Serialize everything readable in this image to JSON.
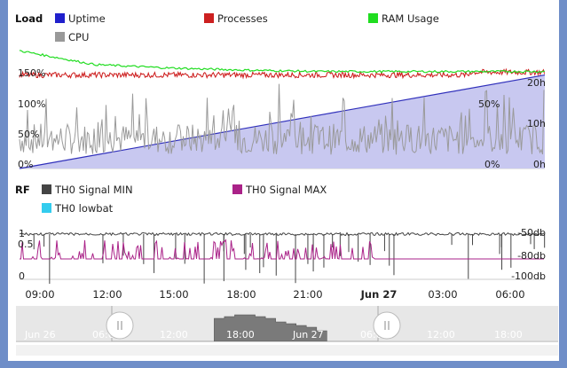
{
  "load_panel": {
    "title": "Load",
    "legend": [
      {
        "label": "Uptime",
        "color": "#2020cc"
      },
      {
        "label": "Processes",
        "color": "#cc2020"
      },
      {
        "label": "RAM Usage",
        "color": "#20dd20"
      },
      {
        "label": "CPU",
        "color": "#999999"
      }
    ],
    "left_ticks": [
      "150%",
      "100%",
      "50%",
      "0%"
    ],
    "inner_ticks": [
      "50%",
      "0%"
    ],
    "right_ticks": [
      "20h",
      "10h",
      "0h"
    ]
  },
  "rf_panel": {
    "title": "RF",
    "legend": [
      {
        "label": "TH0 Signal MIN",
        "color": "#444444"
      },
      {
        "label": "TH0 Signal MAX",
        "color": "#aa2288"
      },
      {
        "label": "TH0 lowbat",
        "color": "#33ccee"
      }
    ],
    "left_ticks": [
      "1",
      "0.5",
      "0"
    ],
    "right_ticks": [
      "-50db",
      "-80db",
      "-100db"
    ]
  },
  "x_axis": {
    "ticks": [
      "09:00",
      "12:00",
      "15:00",
      "18:00",
      "21:00",
      "Jun 27",
      "03:00",
      "06:00"
    ],
    "bold_tick": "Jun 27"
  },
  "navigator": {
    "labels": [
      "Jun 26",
      "06:00",
      "12:00",
      "18:00",
      "Jun 27",
      "06:00",
      "12:00",
      "18:00"
    ]
  },
  "chart_data": [
    {
      "type": "line",
      "title": "Load",
      "series": [
        {
          "name": "Uptime",
          "color": "#2020cc",
          "axis": "right",
          "values_h": [
            0,
            23
          ]
        },
        {
          "name": "Processes",
          "color": "#cc2020",
          "axis": "left",
          "approx_pct": 135
        },
        {
          "name": "RAM Usage",
          "color": "#20dd20",
          "axis": "left",
          "values_pct": [
            170,
            150,
            145,
            142,
            140,
            140,
            140,
            140
          ]
        },
        {
          "name": "CPU",
          "color": "#999999",
          "axis": "left",
          "approx_range_pct": [
            10,
            120
          ]
        }
      ],
      "ylim_left": [
        0,
        160
      ],
      "ylim_right": [
        0,
        24
      ]
    },
    {
      "type": "line",
      "title": "RF",
      "series": [
        {
          "name": "TH0 Signal MIN",
          "color": "#444444",
          "approx_db": -52
        },
        {
          "name": "TH0 Signal MAX",
          "color": "#aa2288",
          "approx_db": -80
        },
        {
          "name": "TH0 lowbat",
          "color": "#33ccee",
          "approx_value": 0
        }
      ],
      "ylim_left": [
        0,
        1
      ],
      "ylim_right_db": [
        -100,
        -50
      ]
    }
  ]
}
